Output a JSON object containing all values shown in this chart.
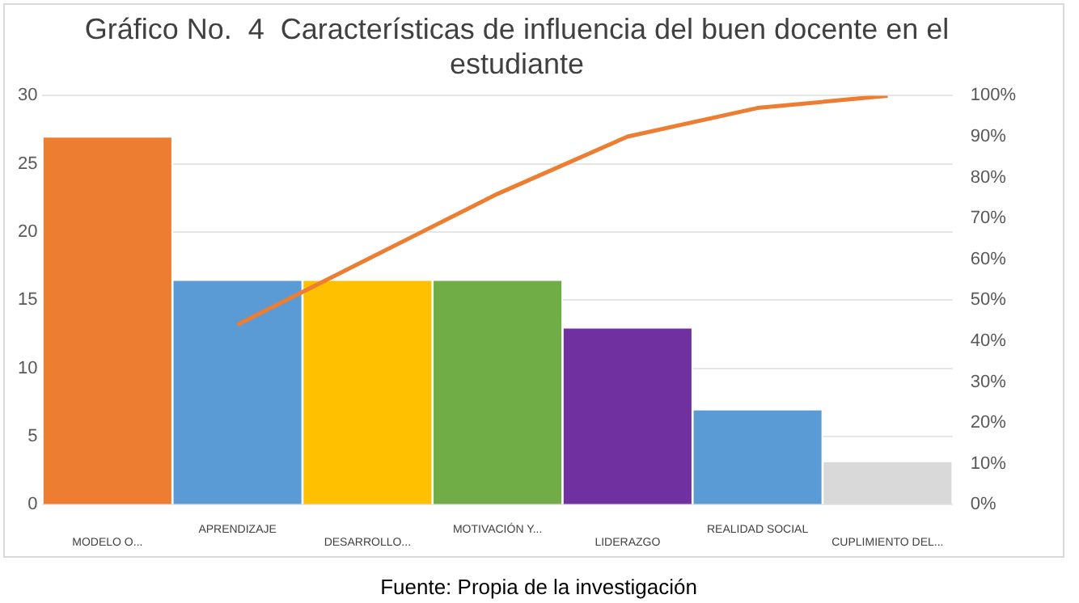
{
  "chart_data": {
    "type": "bar",
    "title": [
      "Gráfico No.  4  Características de influencia del buen docente en el",
      "estudiante"
    ],
    "categories": [
      "MODELO O...",
      "APRENDIZAJE",
      "DESARROLLO...",
      "MOTIVACIÓN Y...",
      "LIDERAZGO",
      "REALIDAD SOCIAL",
      "CUPLIMIENTO DEL..."
    ],
    "series": [
      {
        "colors": [
          "#ed7d31",
          "#5b9bd5",
          "#ffc000",
          "#70ad47",
          "#7030a0",
          "#5b9bd5",
          "#d9d9d9"
        ],
        "values": [
          27,
          16.5,
          16.5,
          16.5,
          13,
          7,
          3.2
        ]
      },
      {
        "type": "line",
        "axis": "y2",
        "color": "#ed7d31",
        "values": [
          null,
          44,
          60,
          76,
          90,
          97,
          100
        ]
      }
    ],
    "ylim": [
      0,
      30
    ],
    "yticks": [
      0,
      5,
      10,
      15,
      20,
      25,
      30
    ],
    "y2lim": [
      0,
      100
    ],
    "y2ticks": [
      {
        "value": 0,
        "label": "0%"
      },
      {
        "value": 10,
        "label": "10%"
      },
      {
        "value": 20,
        "label": "20%"
      },
      {
        "value": 30,
        "label": "30%"
      },
      {
        "value": 40,
        "label": "40%"
      },
      {
        "value": 50,
        "label": "50%"
      },
      {
        "value": 60,
        "label": "60%"
      },
      {
        "value": 70,
        "label": "70%"
      },
      {
        "value": 80,
        "label": "80%"
      },
      {
        "value": 90,
        "label": "90%"
      },
      {
        "value": 100,
        "label": "100%"
      }
    ],
    "grid": "y",
    "legend": false,
    "marker": "none",
    "line_style": "solid",
    "annotations": [
      "Fuente: Propia de la investigación"
    ]
  }
}
